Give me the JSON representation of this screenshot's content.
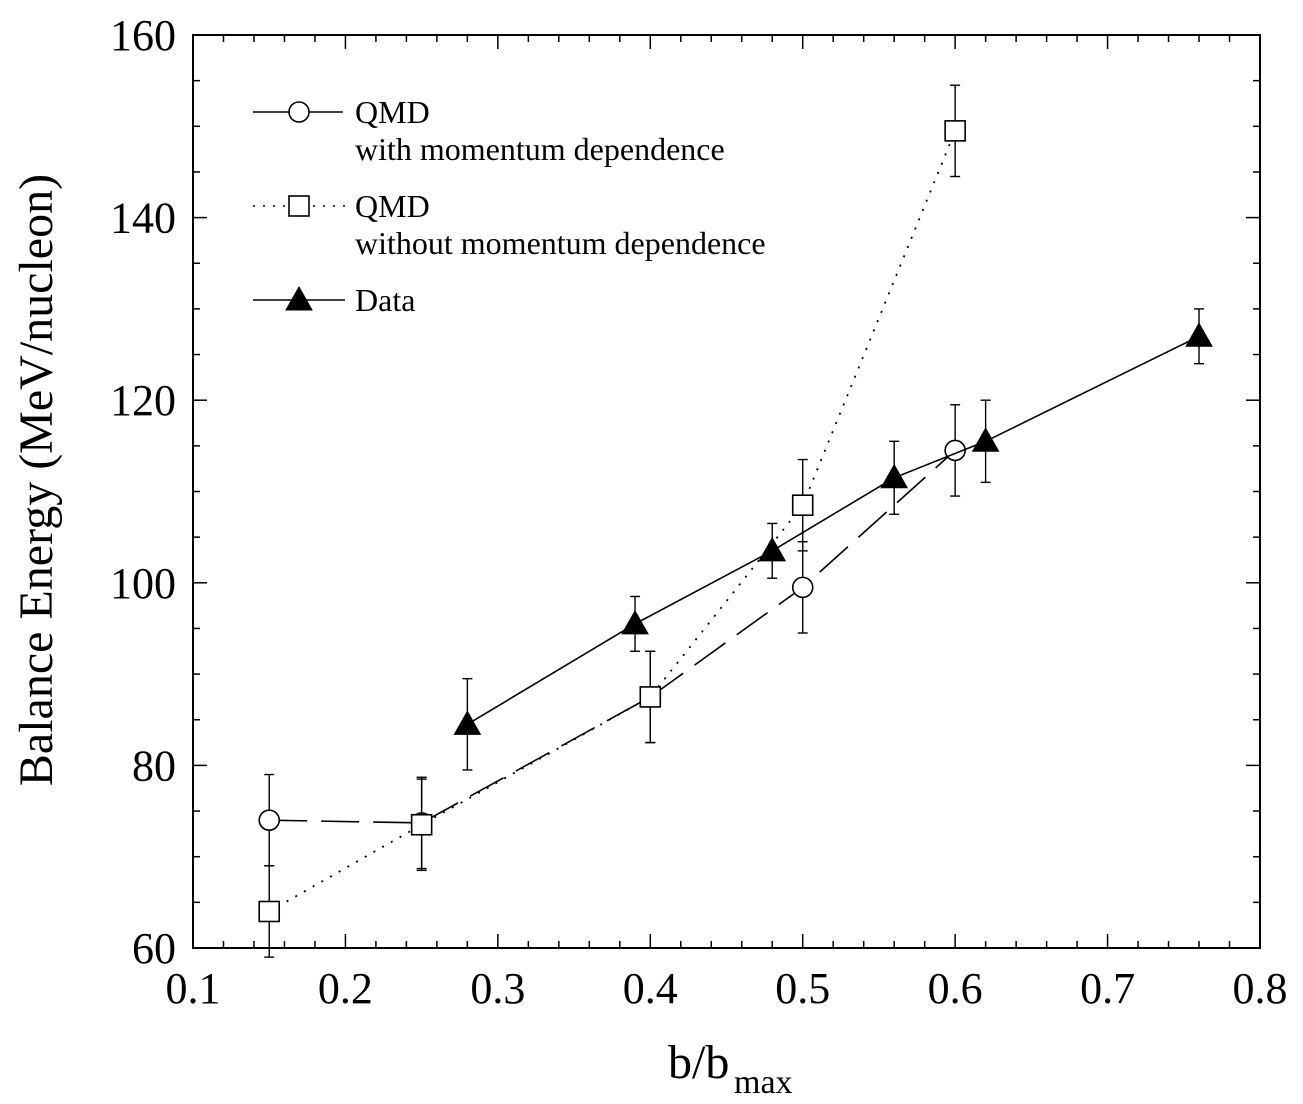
{
  "chart_data": {
    "type": "scatter",
    "xlabel": "b/b",
    "xlabel_subscript": "max",
    "ylabel": "Balance Energy (MeV/nucleon)",
    "xlim": [
      0.1,
      0.8
    ],
    "ylim": [
      60,
      160
    ],
    "xticks": [
      0.1,
      0.2,
      0.3,
      0.4,
      0.5,
      0.6,
      0.7,
      0.8
    ],
    "xtick_labels": [
      "0.1",
      "0.2",
      "0.3",
      "0.4",
      "0.5",
      "0.6",
      "0.7",
      "0.8"
    ],
    "yticks": [
      60,
      80,
      100,
      120,
      140,
      160
    ],
    "ytick_labels": [
      "60",
      "80",
      "100",
      "120",
      "140",
      "160"
    ],
    "grid": false,
    "legend_position": "top-left",
    "series": [
      {
        "key": "qmd_with",
        "name": "QMD",
        "name_line2": "with momentum dependence",
        "marker": "circle",
        "line_style": "long-dash",
        "x": [
          0.15,
          0.25,
          0.4,
          0.5,
          0.6
        ],
        "y": [
          74,
          73.7,
          87.5,
          99.5,
          114.5
        ],
        "yerr": [
          5,
          5,
          5,
          5,
          5
        ]
      },
      {
        "key": "qmd_without",
        "name": "QMD",
        "name_line2": "without momentum dependence",
        "marker": "square",
        "line_style": "dotted",
        "x": [
          0.15,
          0.25,
          0.4,
          0.5,
          0.6
        ],
        "y": [
          64,
          73.5,
          87.5,
          108.5,
          149.5
        ],
        "yerr": [
          5,
          5,
          5,
          5,
          5
        ]
      },
      {
        "key": "data",
        "name": "Data",
        "marker": "filled-triangle",
        "line_style": "solid",
        "x": [
          0.28,
          0.39,
          0.48,
          0.56,
          0.62,
          0.76
        ],
        "y": [
          84.5,
          95.5,
          103.5,
          111.5,
          115.5,
          127
        ],
        "yerr": [
          5,
          3,
          3,
          4,
          4.5,
          3
        ]
      }
    ]
  }
}
